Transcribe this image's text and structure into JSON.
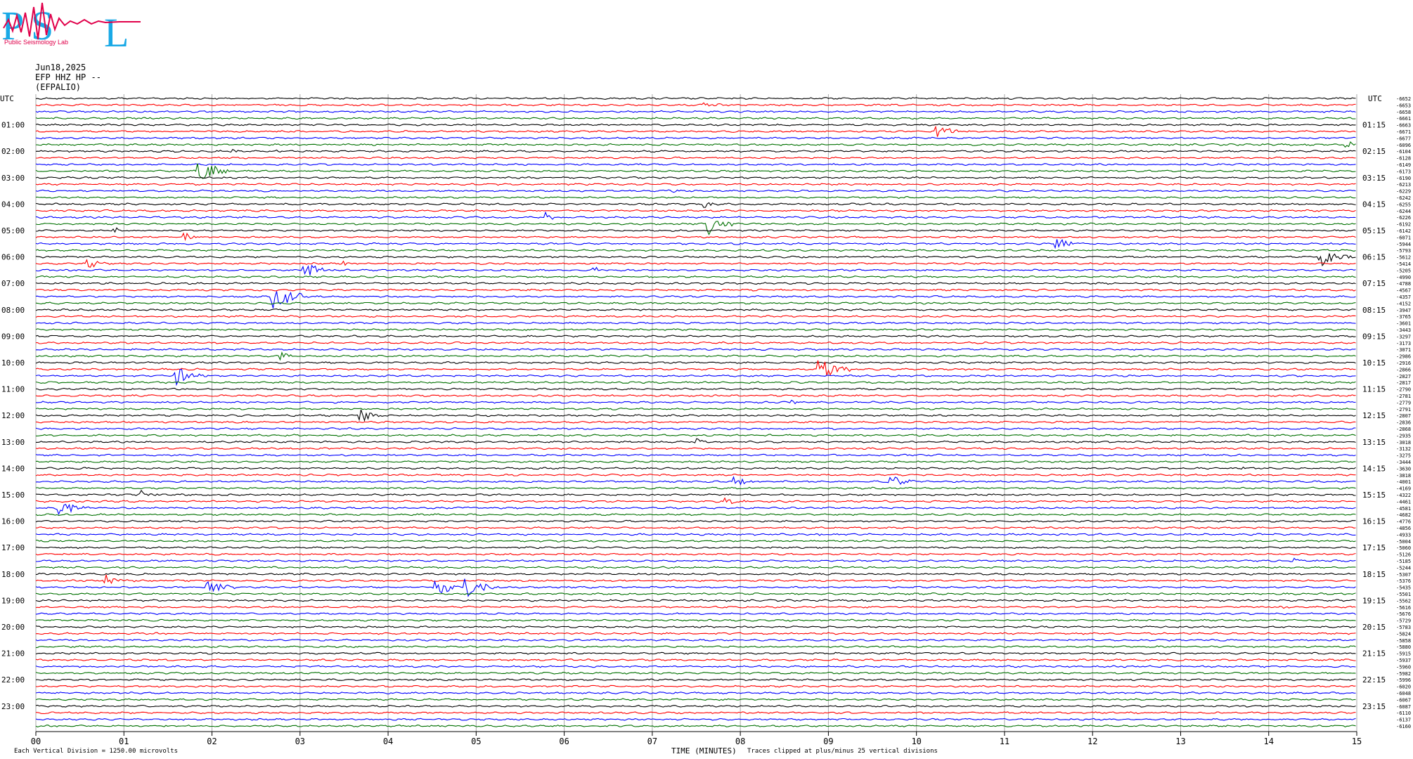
{
  "logo": {
    "text_large": "PSL",
    "text_small": "Public Seismology Lab",
    "colors": {
      "letters": "#19a9e6",
      "wave": "#e0004a"
    }
  },
  "header": {
    "date": "Jun18,2025",
    "channel": "EFP HHZ HP --",
    "station": "(EFPALIO)"
  },
  "footer": {
    "division_note": "Each Vertical Division = 1250.00 microvolts",
    "time_label": "TIME (MINUTES)",
    "clip_note": "Traces clipped at plus/minus 25 vertical divisions"
  },
  "chart_data": {
    "type": "line",
    "title": "",
    "xlabel": "TIME (MINUTES)",
    "ylabel": "",
    "xlim": [
      0,
      15
    ],
    "x_ticks": [
      "00",
      "01",
      "02",
      "03",
      "04",
      "05",
      "06",
      "07",
      "08",
      "09",
      "10",
      "11",
      "12",
      "13",
      "14",
      "15"
    ],
    "utc_label": "UTC",
    "left_time_labels": [
      "01:00",
      "02:00",
      "03:00",
      "04:00",
      "05:00",
      "06:00",
      "07:00",
      "08:00",
      "09:00",
      "10:00",
      "11:00",
      "12:00",
      "13:00",
      "14:00",
      "15:00",
      "16:00",
      "17:00",
      "18:00",
      "19:00",
      "20:00",
      "21:00",
      "22:00",
      "23:00"
    ],
    "right_time_labels": [
      "01:15",
      "02:15",
      "03:15",
      "04:15",
      "05:15",
      "06:15",
      "07:15",
      "08:15",
      "09:15",
      "10:15",
      "11:15",
      "12:15",
      "13:15",
      "14:15",
      "15:15",
      "16:15",
      "17:15",
      "18:15",
      "19:15",
      "20:15",
      "21:15",
      "22:15",
      "23:15"
    ],
    "trace_colors": [
      "#000000",
      "#ff0000",
      "#0000ff",
      "#007000"
    ],
    "trace_count": 96,
    "trace_offsets": [
      -6652,
      -6653,
      -6658,
      -6661,
      -6663,
      -6671,
      -6677,
      -6096,
      -6104,
      -6128,
      -6149,
      -6173,
      -6190,
      -6213,
      -6229,
      -6242,
      -6255,
      -6244,
      -6226,
      -6192,
      -6142,
      -6071,
      -5944,
      -5793,
      -5612,
      -5414,
      -5205,
      -4990,
      -4788,
      -4567,
      -4357,
      -4152,
      -3947,
      -3765,
      -3601,
      -3443,
      -3297,
      -3173,
      -3071,
      -2986,
      -2916,
      -2866,
      -2827,
      -2817,
      -2790,
      -2781,
      -2779,
      -2791,
      -2807,
      -2836,
      -2868,
      -2935,
      -3018,
      -3132,
      -3275,
      -3444,
      -3630,
      -3818,
      -4001,
      -4169,
      -4322,
      -4461,
      -4581,
      -4682,
      -4776,
      -4856,
      -4933,
      -5004,
      -5060,
      -5126,
      -5185,
      -5244,
      -5307,
      -5376,
      -5435,
      -5501,
      -5562,
      -5616,
      -5676,
      -5729,
      -5783,
      -5824,
      -5858,
      -5880,
      -5915,
      -5937,
      -5960,
      -5982,
      -5996,
      -6020,
      -6048,
      -6067,
      -6087,
      -6110,
      -6137,
      -6160
    ],
    "events": [
      {
        "trace": 1,
        "minute": 7.6,
        "size": 1.0
      },
      {
        "trace": 5,
        "minute": 10.25,
        "size": 1.5
      },
      {
        "trace": 7,
        "minute": 14.9,
        "size": 0.8
      },
      {
        "trace": 8,
        "minute": 2.25,
        "size": 0.5
      },
      {
        "trace": 8,
        "minute": 2.75,
        "size": 0.5
      },
      {
        "trace": 11,
        "minute": 1.85,
        "size": 2.5
      },
      {
        "trace": 14,
        "minute": 7.2,
        "size": 0.5
      },
      {
        "trace": 16,
        "minute": 7.6,
        "size": 0.8
      },
      {
        "trace": 18,
        "minute": 5.8,
        "size": 1.0
      },
      {
        "trace": 19,
        "minute": 7.65,
        "size": 2.0
      },
      {
        "trace": 20,
        "minute": 0.9,
        "size": 0.6
      },
      {
        "trace": 21,
        "minute": 1.7,
        "size": 1.0
      },
      {
        "trace": 22,
        "minute": 11.6,
        "size": 1.5
      },
      {
        "trace": 24,
        "minute": 14.6,
        "size": 2.0
      },
      {
        "trace": 25,
        "minute": 0.6,
        "size": 1.2
      },
      {
        "trace": 25,
        "minute": 3.5,
        "size": 0.6
      },
      {
        "trace": 26,
        "minute": 3.05,
        "size": 2.0
      },
      {
        "trace": 26,
        "minute": 6.35,
        "size": 0.7
      },
      {
        "trace": 30,
        "minute": 2.7,
        "size": 2.5
      },
      {
        "trace": 39,
        "minute": 2.8,
        "size": 1.0
      },
      {
        "trace": 41,
        "minute": 8.9,
        "size": 2.5
      },
      {
        "trace": 42,
        "minute": 1.6,
        "size": 2.0
      },
      {
        "trace": 46,
        "minute": 8.6,
        "size": 0.6
      },
      {
        "trace": 48,
        "minute": 3.7,
        "size": 1.5
      },
      {
        "trace": 52,
        "minute": 7.5,
        "size": 0.9
      },
      {
        "trace": 56,
        "minute": 13.7,
        "size": 0.5
      },
      {
        "trace": 58,
        "minute": 7.95,
        "size": 1.2
      },
      {
        "trace": 58,
        "minute": 9.7,
        "size": 1.5
      },
      {
        "trace": 60,
        "minute": 1.2,
        "size": 1.0
      },
      {
        "trace": 61,
        "minute": 7.85,
        "size": 1.0
      },
      {
        "trace": 62,
        "minute": 0.25,
        "size": 2.0
      },
      {
        "trace": 62,
        "minute": 4.9,
        "size": 0.5
      },
      {
        "trace": 66,
        "minute": 8.9,
        "size": 0.5
      },
      {
        "trace": 70,
        "minute": 14.3,
        "size": 0.5
      },
      {
        "trace": 73,
        "minute": 0.8,
        "size": 1.2
      },
      {
        "trace": 74,
        "minute": 1.95,
        "size": 2.0
      },
      {
        "trace": 74,
        "minute": 4.55,
        "size": 1.8
      },
      {
        "trace": 74,
        "minute": 4.9,
        "size": 2.2
      },
      {
        "trace": 77,
        "minute": 14.2,
        "size": 0.4
      }
    ]
  }
}
